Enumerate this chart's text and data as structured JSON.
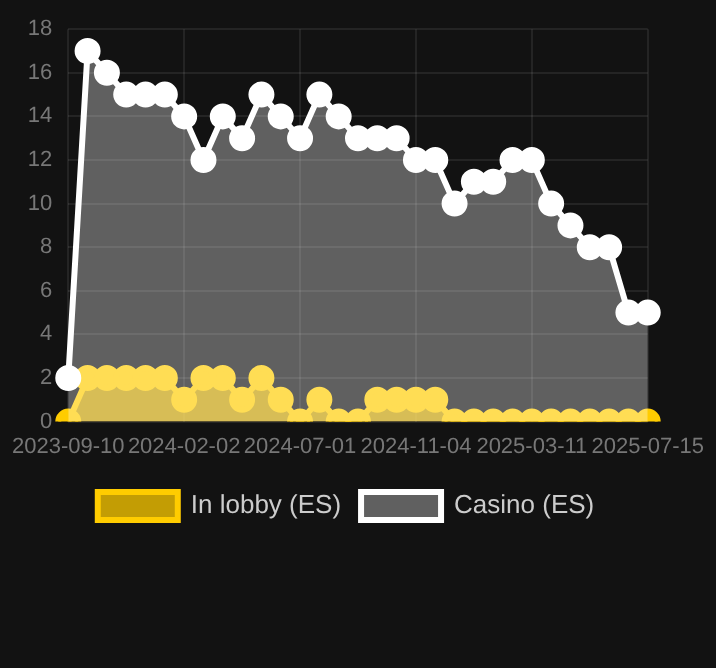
{
  "chart_data": {
    "type": "area",
    "categories": [
      "2023-09-10",
      null,
      null,
      null,
      null,
      null,
      "2024-02-02",
      null,
      null,
      null,
      null,
      null,
      "2024-07-01",
      null,
      null,
      null,
      null,
      null,
      "2024-11-04",
      null,
      null,
      null,
      null,
      null,
      "2025-03-11",
      null,
      null,
      null,
      null,
      null,
      "2025-07-15"
    ],
    "series": [
      {
        "name": "In lobby (ES)",
        "color": "#ffcc00",
        "values": [
          0,
          2,
          2,
          2,
          2,
          2,
          1,
          2,
          2,
          1,
          2,
          1,
          0,
          1,
          0,
          0,
          1,
          1,
          1,
          1,
          0,
          0,
          0,
          0,
          0,
          0,
          0,
          0,
          0,
          0,
          0
        ]
      },
      {
        "name": "Casino (ES)",
        "color": "#ffffff",
        "values": [
          2,
          17,
          16,
          15,
          15,
          15,
          14,
          12,
          14,
          13,
          15,
          14,
          13,
          15,
          14,
          13,
          13,
          13,
          12,
          12,
          10,
          11,
          11,
          12,
          12,
          10,
          9,
          8,
          8,
          5,
          5
        ]
      }
    ],
    "ylim": [
      0,
      18
    ],
    "yticks": [
      0,
      2,
      4,
      6,
      8,
      10,
      12,
      14,
      16,
      18
    ],
    "grid": true,
    "legend": "bottom",
    "marker": "circle"
  }
}
